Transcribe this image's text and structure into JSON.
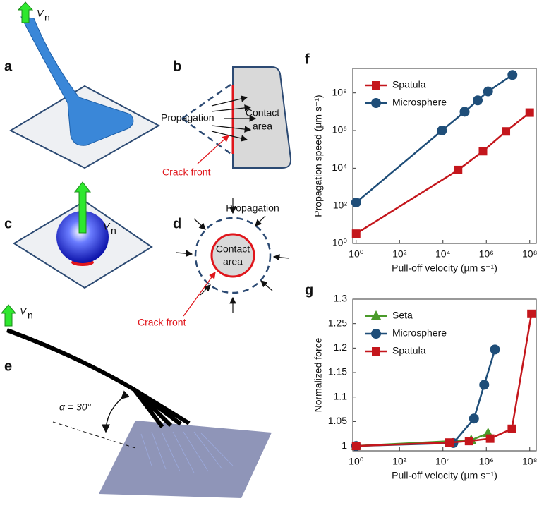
{
  "diagrams": {
    "labels": [
      "a",
      "b",
      "c",
      "d",
      "e"
    ],
    "velocity_symbol": "V",
    "velocity_subscript": "n",
    "b": {
      "propagation": "Propagation",
      "contact_area": [
        "Contact",
        "area"
      ],
      "crack_front": "Crack front"
    },
    "d": {
      "propagation": "Propagation",
      "contact_area": [
        "Contact",
        "area"
      ],
      "crack_front": "Crack front"
    },
    "e": {
      "angle": "α = 30°"
    }
  },
  "chart_data": [
    {
      "type": "line",
      "panel_label": "f",
      "x_label": "Pull-off velocity (µm s⁻¹)",
      "y_label": "Propagation speed (µm s⁻¹)",
      "xlog": true,
      "ylog": true,
      "xlim": [
        0.7,
        200000000
      ],
      "ylim": [
        1,
        2000000000
      ],
      "xticks": [
        {
          "value": 1,
          "label": "10⁰"
        },
        {
          "value": 100,
          "label": "10²"
        },
        {
          "value": 10000,
          "label": "10⁴"
        },
        {
          "value": 1000000,
          "label": "10⁶"
        },
        {
          "value": 100000000,
          "label": "10⁸"
        }
      ],
      "yticks": [
        {
          "value": 1,
          "label": "10⁰"
        },
        {
          "value": 100,
          "label": "10²"
        },
        {
          "value": 10000,
          "label": "10⁴"
        },
        {
          "value": 1000000,
          "label": "10⁶"
        },
        {
          "value": 100000000,
          "label": "10⁸"
        }
      ],
      "legend": "upper left",
      "series": [
        {
          "name": "Spatula",
          "color": "#c4161c",
          "marker": "square",
          "x": [
            1,
            50000,
            700000,
            8000000,
            100000000
          ],
          "values": [
            3.3,
            8000,
            80000,
            900000,
            9000000
          ]
        },
        {
          "name": "Microsphere",
          "color": "#1f4e79",
          "marker": "circle",
          "x": [
            1,
            9000,
            100000,
            400000,
            1200000,
            16000000
          ],
          "values": [
            150,
            1000000,
            10000000,
            40000000,
            120000000,
            900000000
          ]
        }
      ]
    },
    {
      "type": "line",
      "panel_label": "g",
      "x_label": "Pull-off velocity (µm s⁻¹)",
      "y_label": "Normalized force",
      "xlog": true,
      "ylog": false,
      "xlim": [
        0.7,
        200000000
      ],
      "ylim": [
        0.99,
        1.3
      ],
      "xticks": [
        {
          "value": 1,
          "label": "10⁰"
        },
        {
          "value": 100,
          "label": "10²"
        },
        {
          "value": 10000,
          "label": "10⁴"
        },
        {
          "value": 1000000,
          "label": "10⁶"
        },
        {
          "value": 100000000,
          "label": "10⁸"
        }
      ],
      "yticks": [
        1,
        1.05,
        1.1,
        1.15,
        1.2,
        1.25,
        1.3
      ],
      "legend": "upper left",
      "series": [
        {
          "name": "Seta",
          "color": "#4a9a2a",
          "marker": "triangle",
          "x": [
            1,
            200000,
            1200000
          ],
          "values": [
            1,
            1.012,
            1.026
          ]
        },
        {
          "name": "Microsphere",
          "color": "#1f4e79",
          "marker": "circle",
          "x": [
            1,
            30000,
            270000,
            800000,
            2500000
          ],
          "values": [
            1,
            1.006,
            1.056,
            1.125,
            1.197
          ]
        },
        {
          "name": "Spatula",
          "color": "#c4161c",
          "marker": "square",
          "x": [
            1,
            20000,
            160000,
            1500000,
            15000000,
            120000000
          ],
          "values": [
            1,
            1.007,
            1.01,
            1.015,
            1.035,
            1.27
          ]
        }
      ]
    }
  ]
}
